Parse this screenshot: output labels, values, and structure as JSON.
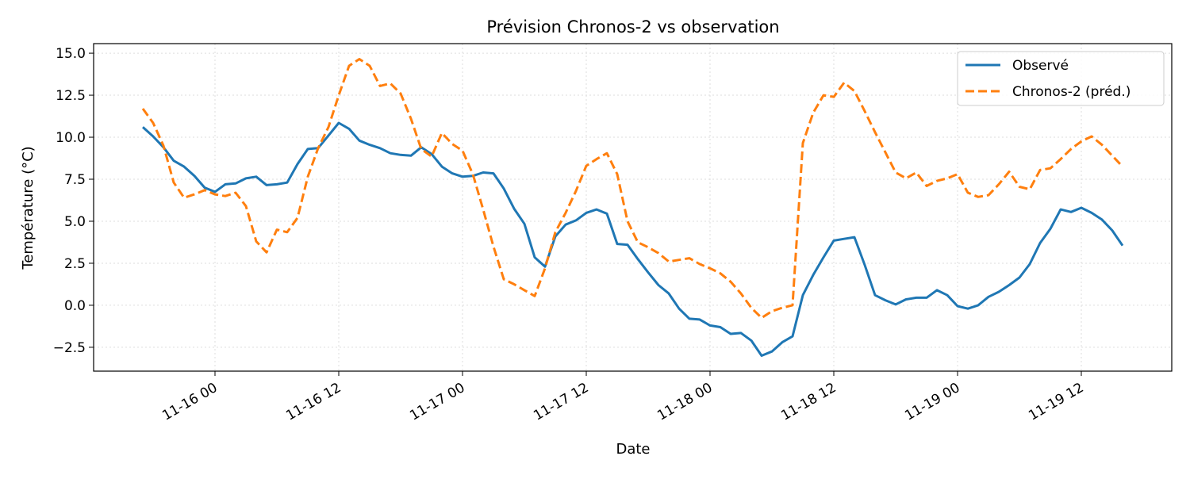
{
  "chart_data": {
    "type": "line",
    "title": "Prévision Chronos-2 vs observation",
    "xlabel": "Date",
    "ylabel": "Température (°C)",
    "ylim": [
      -3.9,
      15.6
    ],
    "xlim": [
      "11-15 12:14",
      "11-19 20:46"
    ],
    "grid": true,
    "legend_position": "top-right",
    "x_tick_labels": [
      "11-16 00",
      "11-16 12",
      "11-17 00",
      "11-17 12",
      "11-18 00",
      "11-18 12",
      "11-19 00",
      "11-19 12"
    ],
    "y_tick_labels": [
      "−2.5",
      "0.0",
      "2.5",
      "5.0",
      "7.5",
      "10.0",
      "12.5",
      "15.0"
    ],
    "x": [
      "11-15 17:00",
      "11-15 18:00",
      "11-15 19:00",
      "11-15 20:00",
      "11-15 21:00",
      "11-15 22:00",
      "11-15 23:00",
      "11-16 00:00",
      "11-16 01:00",
      "11-16 02:00",
      "11-16 03:00",
      "11-16 04:00",
      "11-16 05:00",
      "11-16 06:00",
      "11-16 07:00",
      "11-16 08:00",
      "11-16 09:00",
      "11-16 10:00",
      "11-16 11:00",
      "11-16 12:00",
      "11-16 13:00",
      "11-16 14:00",
      "11-16 15:00",
      "11-16 16:00",
      "11-16 17:00",
      "11-16 18:00",
      "11-16 19:00",
      "11-16 20:00",
      "11-16 21:00",
      "11-16 22:00",
      "11-16 23:00",
      "11-17 00:00",
      "11-17 01:00",
      "11-17 02:00",
      "11-17 03:00",
      "11-17 04:00",
      "11-17 05:00",
      "11-17 06:00",
      "11-17 07:00",
      "11-17 08:00",
      "11-17 09:00",
      "11-17 10:00",
      "11-17 11:00",
      "11-17 12:00",
      "11-17 13:00",
      "11-17 14:00",
      "11-17 15:00",
      "11-17 16:00",
      "11-17 17:00",
      "11-17 18:00",
      "11-17 19:00",
      "11-17 20:00",
      "11-17 21:00",
      "11-17 22:00",
      "11-17 23:00",
      "11-18 00:00",
      "11-18 01:00",
      "11-18 02:00",
      "11-18 03:00",
      "11-18 04:00",
      "11-18 05:00",
      "11-18 06:00",
      "11-18 07:00",
      "11-18 08:00",
      "11-18 09:00",
      "11-18 10:00",
      "11-18 11:00",
      "11-18 12:00",
      "11-18 13:00",
      "11-18 14:00",
      "11-18 15:00",
      "11-18 16:00",
      "11-18 17:00",
      "11-18 18:00",
      "11-18 19:00",
      "11-18 20:00",
      "11-18 21:00",
      "11-18 22:00",
      "11-18 23:00",
      "11-19 00:00",
      "11-19 01:00",
      "11-19 02:00",
      "11-19 03:00",
      "11-19 04:00",
      "11-19 05:00",
      "11-19 06:00",
      "11-19 07:00",
      "11-19 08:00",
      "11-19 09:00",
      "11-19 10:00",
      "11-19 11:00",
      "11-19 12:00",
      "11-19 13:00",
      "11-19 14:00",
      "11-19 15:00",
      "11-19 16:00"
    ],
    "series": [
      {
        "name": "Observé",
        "color": "#1f77b4",
        "style": "solid",
        "values": [
          10.6,
          10.05,
          9.4,
          8.6,
          8.25,
          7.7,
          7.0,
          6.75,
          7.2,
          7.25,
          7.55,
          7.65,
          7.15,
          7.2,
          7.3,
          8.4,
          9.3,
          9.35,
          10.1,
          10.85,
          10.5,
          9.8,
          9.55,
          9.35,
          9.05,
          8.95,
          8.9,
          9.4,
          9.0,
          8.25,
          7.85,
          7.65,
          7.7,
          7.9,
          7.85,
          6.95,
          5.75,
          4.85,
          2.85,
          2.3,
          4.1,
          4.8,
          5.05,
          5.5,
          5.7,
          5.45,
          3.65,
          3.6,
          2.75,
          1.95,
          1.2,
          0.7,
          -0.2,
          -0.8,
          -0.85,
          -1.2,
          -1.3,
          -1.7,
          -1.65,
          -2.1,
          -3.0,
          -2.75,
          -2.2,
          -1.85,
          0.6,
          1.8,
          2.85,
          3.85,
          3.95,
          4.05,
          2.4,
          0.6,
          0.3,
          0.05,
          0.35,
          0.45,
          0.45,
          0.9,
          0.6,
          -0.05,
          -0.2,
          0.0,
          0.5,
          0.8,
          1.2,
          1.65,
          2.45,
          3.7,
          4.55,
          5.7,
          5.55,
          5.8,
          5.5,
          5.1,
          4.45,
          3.55
        ]
      },
      {
        "name": "Chronos-2 (préd.)",
        "color": "#ff7f0e",
        "style": "dashed",
        "values": [
          11.7,
          10.85,
          9.5,
          7.3,
          6.4,
          6.6,
          6.85,
          6.6,
          6.5,
          6.7,
          5.9,
          3.8,
          3.15,
          4.5,
          4.35,
          5.2,
          7.65,
          9.35,
          10.6,
          12.5,
          14.25,
          14.65,
          14.25,
          13.05,
          13.2,
          12.6,
          11.1,
          9.3,
          8.85,
          10.25,
          9.6,
          9.2,
          7.8,
          5.7,
          3.5,
          1.55,
          1.25,
          0.9,
          0.55,
          2.2,
          4.35,
          5.5,
          6.8,
          8.3,
          8.7,
          9.05,
          7.8,
          5.0,
          3.75,
          3.45,
          3.1,
          2.6,
          2.7,
          2.8,
          2.45,
          2.2,
          1.9,
          1.4,
          0.7,
          -0.15,
          -0.75,
          -0.35,
          -0.15,
          0.0,
          9.65,
          11.45,
          12.5,
          12.4,
          13.25,
          12.75,
          11.55,
          10.3,
          9.1,
          7.9,
          7.55,
          7.9,
          7.1,
          7.4,
          7.55,
          7.8,
          6.7,
          6.45,
          6.55,
          7.2,
          7.95,
          7.05,
          6.9,
          8.05,
          8.15,
          8.7,
          9.3,
          9.75,
          10.05,
          9.55,
          8.9,
          8.25
        ]
      }
    ]
  }
}
